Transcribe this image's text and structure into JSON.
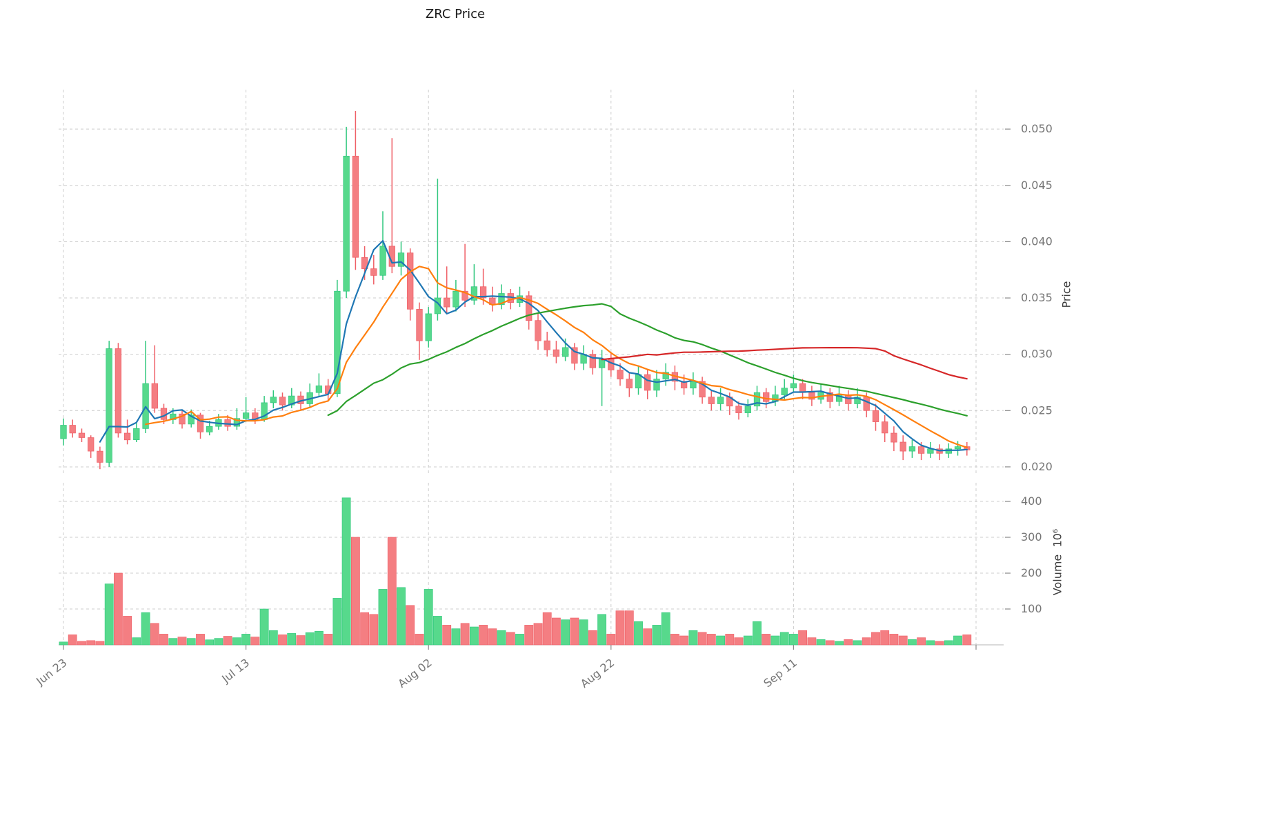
{
  "title": "ZRC Price",
  "chart_data": {
    "type": "candlestick",
    "title": "ZRC Price",
    "grid": true,
    "legend_position": "none",
    "price_axis": {
      "label": "Price",
      "ticks": [
        0.02,
        0.025,
        0.03,
        0.035,
        0.04,
        0.045,
        0.05
      ],
      "range": [
        0.0192,
        0.0535
      ]
    },
    "volume_axis": {
      "label": "Volume  10⁶",
      "ticks": [
        100,
        200,
        300,
        400
      ],
      "range": [
        0,
        452
      ]
    },
    "x_axis": {
      "tick_labels": [
        {
          "index": 0,
          "label": "Jun 23"
        },
        {
          "index": 20,
          "label": "Jul 13"
        },
        {
          "index": 40,
          "label": "Aug 02"
        },
        {
          "index": 60,
          "label": "Aug 22"
        },
        {
          "index": 80,
          "label": "Sep 11"
        }
      ],
      "grid_indexes": [
        0,
        20,
        40,
        60,
        80,
        100
      ]
    },
    "moving_averages": [
      {
        "name": "MA5",
        "window": 5,
        "color": "#1f77b4"
      },
      {
        "name": "MA10",
        "window": 10,
        "color": "#ff7f0e"
      },
      {
        "name": "MA30",
        "window": 30,
        "color": "#2ca02c"
      },
      {
        "name": "MA60",
        "window": 60,
        "color": "#d62728"
      }
    ],
    "colors": {
      "up": "#57d98c",
      "down": "#f47e82",
      "up_edge": "#2fc77d",
      "down_edge": "#ef5f66",
      "grid": "#cccccc",
      "tick_label": "#757575",
      "title": "#1a1a1a"
    },
    "candles_format": [
      "open",
      "high",
      "low",
      "close",
      "volume_millions"
    ],
    "candles": [
      [
        0.0225,
        0.0243,
        0.0219,
        0.0237,
        8
      ],
      [
        0.0237,
        0.0242,
        0.0226,
        0.023,
        28
      ],
      [
        0.023,
        0.0234,
        0.0222,
        0.0226,
        10
      ],
      [
        0.0226,
        0.0228,
        0.0208,
        0.0214,
        12
      ],
      [
        0.0214,
        0.0218,
        0.0198,
        0.0204,
        10
      ],
      [
        0.0204,
        0.0312,
        0.02,
        0.0305,
        170
      ],
      [
        0.0305,
        0.031,
        0.0226,
        0.023,
        200
      ],
      [
        0.023,
        0.0242,
        0.022,
        0.0224,
        80
      ],
      [
        0.0224,
        0.024,
        0.0222,
        0.0234,
        20
      ],
      [
        0.0234,
        0.0312,
        0.023,
        0.0274,
        90
      ],
      [
        0.0274,
        0.0308,
        0.0248,
        0.0252,
        60
      ],
      [
        0.0252,
        0.0256,
        0.0238,
        0.0242,
        30
      ],
      [
        0.0242,
        0.0252,
        0.0238,
        0.0247,
        18
      ],
      [
        0.0247,
        0.025,
        0.0234,
        0.0238,
        22
      ],
      [
        0.0238,
        0.0251,
        0.0235,
        0.0246,
        18
      ],
      [
        0.0246,
        0.0248,
        0.0225,
        0.0231,
        30
      ],
      [
        0.0231,
        0.0241,
        0.0228,
        0.0236,
        14
      ],
      [
        0.0236,
        0.0247,
        0.0233,
        0.0242,
        18
      ],
      [
        0.0242,
        0.0246,
        0.0232,
        0.0236,
        24
      ],
      [
        0.0236,
        0.0252,
        0.0233,
        0.0243,
        20
      ],
      [
        0.0243,
        0.0262,
        0.024,
        0.0248,
        30
      ],
      [
        0.0248,
        0.0252,
        0.0238,
        0.0242,
        22
      ],
      [
        0.0242,
        0.0263,
        0.024,
        0.0257,
        100
      ],
      [
        0.0257,
        0.0268,
        0.0252,
        0.0262,
        40
      ],
      [
        0.0262,
        0.0266,
        0.025,
        0.0255,
        28
      ],
      [
        0.0255,
        0.027,
        0.0252,
        0.0263,
        32
      ],
      [
        0.0263,
        0.0267,
        0.0251,
        0.0256,
        26
      ],
      [
        0.0256,
        0.0274,
        0.0253,
        0.0266,
        34
      ],
      [
        0.0266,
        0.0283,
        0.0262,
        0.0272,
        38
      ],
      [
        0.0272,
        0.0278,
        0.0259,
        0.0265,
        30
      ],
      [
        0.0265,
        0.0366,
        0.0262,
        0.0356,
        130
      ],
      [
        0.0356,
        0.0502,
        0.035,
        0.0476,
        410
      ],
      [
        0.0476,
        0.0516,
        0.0375,
        0.0386,
        300
      ],
      [
        0.0386,
        0.0396,
        0.0366,
        0.0376,
        90
      ],
      [
        0.0376,
        0.0388,
        0.0362,
        0.037,
        85
      ],
      [
        0.037,
        0.0427,
        0.0366,
        0.0396,
        155
      ],
      [
        0.0396,
        0.0492,
        0.0372,
        0.0378,
        300
      ],
      [
        0.0378,
        0.04,
        0.037,
        0.039,
        160
      ],
      [
        0.039,
        0.0394,
        0.033,
        0.034,
        110
      ],
      [
        0.034,
        0.0346,
        0.0295,
        0.0312,
        30
      ],
      [
        0.0312,
        0.0342,
        0.0306,
        0.0336,
        155
      ],
      [
        0.0336,
        0.0456,
        0.033,
        0.035,
        80
      ],
      [
        0.035,
        0.0378,
        0.0336,
        0.0342,
        55
      ],
      [
        0.0342,
        0.0366,
        0.0338,
        0.0356,
        45
      ],
      [
        0.0356,
        0.0398,
        0.0342,
        0.0348,
        60
      ],
      [
        0.0348,
        0.038,
        0.0344,
        0.036,
        50
      ],
      [
        0.036,
        0.0376,
        0.0344,
        0.035,
        55
      ],
      [
        0.035,
        0.036,
        0.0338,
        0.0344,
        45
      ],
      [
        0.0344,
        0.0362,
        0.034,
        0.0354,
        40
      ],
      [
        0.0354,
        0.0358,
        0.034,
        0.0346,
        35
      ],
      [
        0.0346,
        0.036,
        0.0342,
        0.0352,
        30
      ],
      [
        0.0352,
        0.0356,
        0.0322,
        0.033,
        55
      ],
      [
        0.033,
        0.0336,
        0.0304,
        0.0312,
        60
      ],
      [
        0.0312,
        0.032,
        0.0298,
        0.0304,
        90
      ],
      [
        0.0304,
        0.0312,
        0.0292,
        0.0298,
        75
      ],
      [
        0.0298,
        0.0314,
        0.0294,
        0.0306,
        70
      ],
      [
        0.0306,
        0.031,
        0.0286,
        0.0292,
        75
      ],
      [
        0.0292,
        0.0308,
        0.0286,
        0.03,
        70
      ],
      [
        0.03,
        0.0304,
        0.0282,
        0.0288,
        40
      ],
      [
        0.0288,
        0.0304,
        0.0254,
        0.0296,
        85
      ],
      [
        0.0296,
        0.0302,
        0.028,
        0.0286,
        30
      ],
      [
        0.0286,
        0.0292,
        0.0272,
        0.0278,
        95
      ],
      [
        0.0278,
        0.0284,
        0.0262,
        0.027,
        95
      ],
      [
        0.027,
        0.029,
        0.0264,
        0.0282,
        65
      ],
      [
        0.0282,
        0.0286,
        0.026,
        0.0268,
        45
      ],
      [
        0.0268,
        0.0286,
        0.0262,
        0.0278,
        55
      ],
      [
        0.0278,
        0.0292,
        0.0272,
        0.0284,
        90
      ],
      [
        0.0284,
        0.029,
        0.0268,
        0.0276,
        30
      ],
      [
        0.0276,
        0.0282,
        0.0264,
        0.027,
        25
      ],
      [
        0.027,
        0.0284,
        0.0264,
        0.0276,
        40
      ],
      [
        0.0276,
        0.028,
        0.0256,
        0.0262,
        35
      ],
      [
        0.0262,
        0.0268,
        0.025,
        0.0256,
        30
      ],
      [
        0.0256,
        0.027,
        0.025,
        0.0262,
        25
      ],
      [
        0.0262,
        0.0266,
        0.0246,
        0.0254,
        30
      ],
      [
        0.0254,
        0.0258,
        0.0242,
        0.0248,
        20
      ],
      [
        0.0248,
        0.026,
        0.0244,
        0.0254,
        25
      ],
      [
        0.0254,
        0.0272,
        0.025,
        0.0266,
        65
      ],
      [
        0.0266,
        0.027,
        0.0252,
        0.0258,
        30
      ],
      [
        0.0258,
        0.0272,
        0.0254,
        0.0264,
        25
      ],
      [
        0.0264,
        0.0278,
        0.026,
        0.027,
        35
      ],
      [
        0.027,
        0.0282,
        0.0266,
        0.0274,
        30
      ],
      [
        0.0274,
        0.0278,
        0.026,
        0.0266,
        40
      ],
      [
        0.0266,
        0.0272,
        0.0254,
        0.026,
        20
      ],
      [
        0.026,
        0.0274,
        0.0256,
        0.0266,
        15
      ],
      [
        0.0266,
        0.027,
        0.0252,
        0.0258,
        12
      ],
      [
        0.0258,
        0.0272,
        0.0254,
        0.0264,
        10
      ],
      [
        0.0264,
        0.0268,
        0.025,
        0.0256,
        15
      ],
      [
        0.0256,
        0.027,
        0.0252,
        0.0262,
        12
      ],
      [
        0.0262,
        0.0266,
        0.0244,
        0.025,
        20
      ],
      [
        0.025,
        0.0256,
        0.0232,
        0.024,
        35
      ],
      [
        0.024,
        0.0246,
        0.0222,
        0.023,
        40
      ],
      [
        0.023,
        0.0236,
        0.0214,
        0.0222,
        30
      ],
      [
        0.0222,
        0.0228,
        0.0206,
        0.0214,
        25
      ],
      [
        0.0214,
        0.0224,
        0.0208,
        0.0218,
        15
      ],
      [
        0.0218,
        0.0222,
        0.0206,
        0.0212,
        20
      ],
      [
        0.0212,
        0.0222,
        0.0208,
        0.0216,
        12
      ],
      [
        0.0216,
        0.022,
        0.0206,
        0.0212,
        10
      ],
      [
        0.0212,
        0.0221,
        0.0208,
        0.0216,
        12
      ],
      [
        0.0216,
        0.0223,
        0.021,
        0.0218,
        25
      ],
      [
        0.0218,
        0.0222,
        0.021,
        0.0215,
        28
      ]
    ]
  }
}
